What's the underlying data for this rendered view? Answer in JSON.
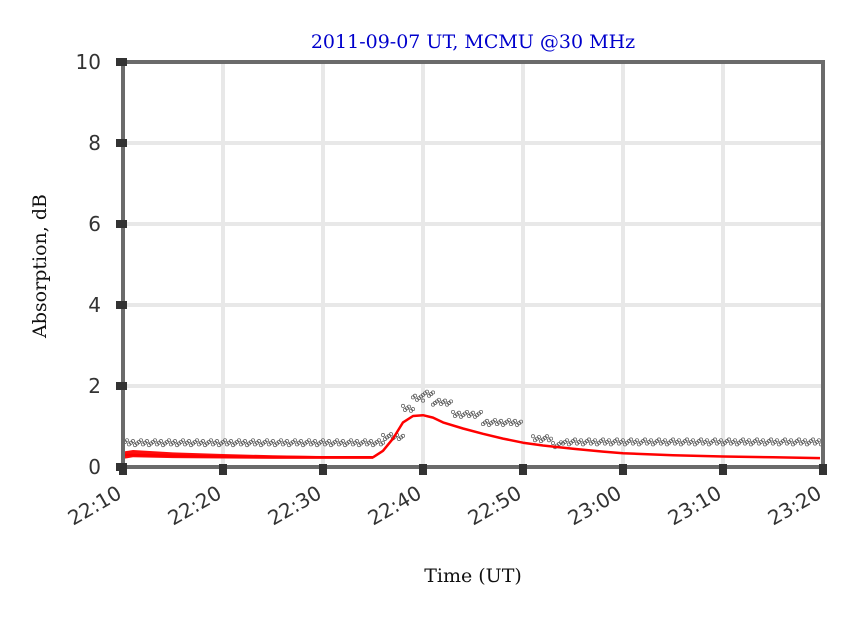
{
  "chart_data": {
    "type": "line",
    "title": "2011-09-07 UT, MCMU @30 MHz",
    "xlabel": "Time (UT)",
    "ylabel": "Absorption, dB",
    "xlim_minutes": [
      0,
      70
    ],
    "ylim": [
      0,
      10
    ],
    "xticks": [
      {
        "minute": 0,
        "label": "22:10"
      },
      {
        "minute": 10,
        "label": "22:20"
      },
      {
        "minute": 20,
        "label": "22:30"
      },
      {
        "minute": 30,
        "label": "22:40"
      },
      {
        "minute": 40,
        "label": "22:50"
      },
      {
        "minute": 50,
        "label": "23:00"
      },
      {
        "minute": 60,
        "label": "23:10"
      },
      {
        "minute": 70,
        "label": "23:20"
      }
    ],
    "yticks": [
      0,
      2,
      4,
      6,
      8,
      10
    ],
    "grid": true,
    "series": [
      {
        "name": "model-absorption",
        "color": "#ff0000",
        "style": "line",
        "points": [
          [
            0,
            0.3
          ],
          [
            5,
            0.28
          ],
          [
            10,
            0.26
          ],
          [
            15,
            0.25
          ],
          [
            20,
            0.24
          ],
          [
            25,
            0.24
          ],
          [
            26,
            0.4
          ],
          [
            27,
            0.7
          ],
          [
            28,
            1.1
          ],
          [
            29,
            1.26
          ],
          [
            30,
            1.28
          ],
          [
            31,
            1.22
          ],
          [
            32,
            1.1
          ],
          [
            34,
            0.95
          ],
          [
            36,
            0.82
          ],
          [
            38,
            0.7
          ],
          [
            40,
            0.6
          ],
          [
            42,
            0.53
          ],
          [
            45,
            0.45
          ],
          [
            48,
            0.38
          ],
          [
            50,
            0.34
          ],
          [
            55,
            0.29
          ],
          [
            60,
            0.26
          ],
          [
            65,
            0.24
          ],
          [
            69.7,
            0.22
          ]
        ]
      },
      {
        "name": "model-spread-band",
        "color": "#ff0000",
        "style": "band",
        "upper": [
          [
            0,
            0.38
          ],
          [
            1,
            0.42
          ],
          [
            5,
            0.36
          ],
          [
            10,
            0.32
          ],
          [
            15,
            0.29
          ],
          [
            20,
            0.27
          ],
          [
            25,
            0.27
          ]
        ],
        "lower": [
          [
            0,
            0.2
          ],
          [
            1,
            0.24
          ],
          [
            5,
            0.22
          ],
          [
            10,
            0.21
          ],
          [
            15,
            0.2
          ],
          [
            20,
            0.2
          ],
          [
            25,
            0.2
          ]
        ]
      },
      {
        "name": "measured-absorption",
        "color": "#555555",
        "style": "markers",
        "segments": [
          {
            "from": 0,
            "to": 26,
            "level": 0.6
          },
          {
            "from": 26,
            "to": 28,
            "level": 0.75
          },
          {
            "from": 28,
            "to": 29,
            "level": 1.45
          },
          {
            "from": 29,
            "to": 30,
            "level": 1.7
          },
          {
            "from": 30,
            "to": 31,
            "level": 1.8
          },
          {
            "from": 31,
            "to": 33,
            "level": 1.6
          },
          {
            "from": 33,
            "to": 36,
            "level": 1.3
          },
          {
            "from": 36,
            "to": 40,
            "level": 1.1
          },
          {
            "from": 41,
            "to": 43,
            "level": 0.7
          },
          {
            "from": 43,
            "to": 44,
            "level": 0.55
          },
          {
            "from": 44,
            "to": 70,
            "level": 0.62
          }
        ]
      }
    ]
  }
}
